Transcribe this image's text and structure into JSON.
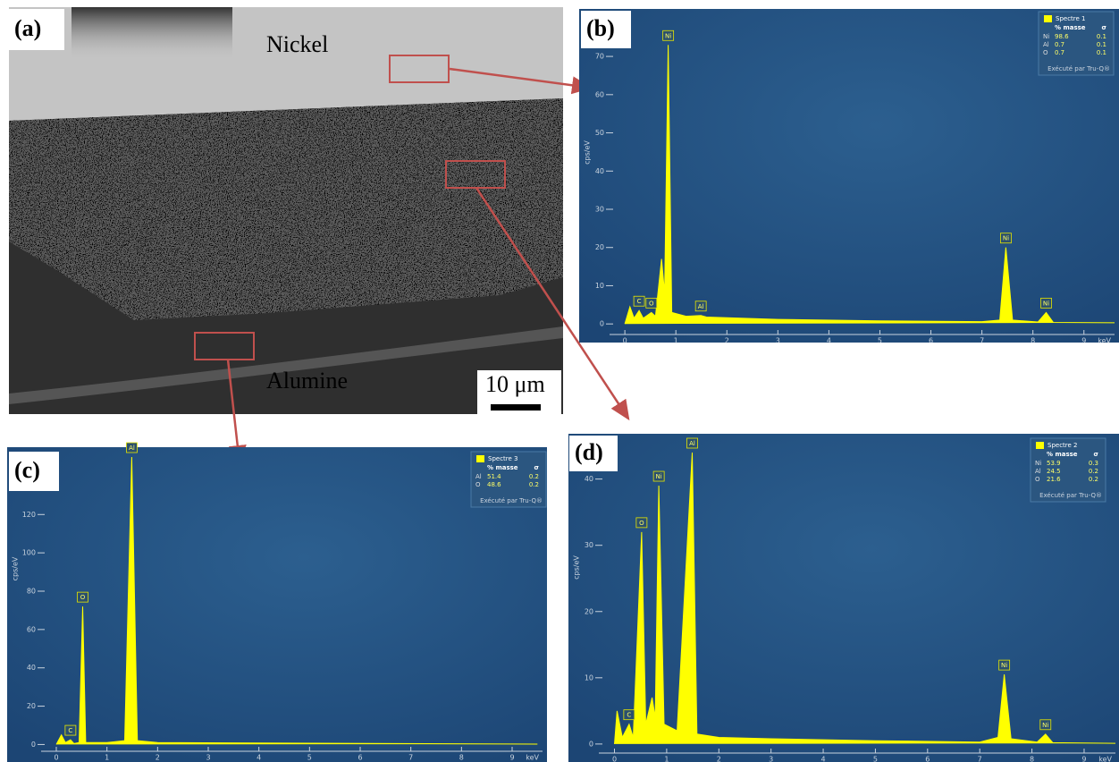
{
  "figure": {
    "panel": "(a)",
    "top_label": "Nickel",
    "bottom_label": "Alumine",
    "scale_bar": "10 μm"
  },
  "chart_data": [
    {
      "type": "line",
      "panel": "(b)",
      "ylabel": "cps/eV",
      "xlabel": "keV",
      "xlim": [
        -0.3,
        9.6
      ],
      "ylim": [
        -3,
        74
      ],
      "xticks": [
        0,
        1,
        2,
        3,
        4,
        5,
        6,
        7,
        8,
        9
      ],
      "yticks": [
        0,
        10,
        20,
        30,
        40,
        50,
        60,
        70
      ],
      "series": [
        {
          "name": "Spectre 1",
          "color": "#ffff00",
          "x": [
            0,
            0.1,
            0.18,
            0.28,
            0.36,
            0.52,
            0.6,
            0.72,
            0.78,
            0.85,
            0.92,
            1.2,
            1.49,
            1.6,
            3,
            5,
            7,
            7.35,
            7.47,
            7.6,
            8.1,
            8.26,
            8.4,
            9.6
          ],
          "y": [
            0,
            4.5,
            1.5,
            3.5,
            1.5,
            3,
            2,
            17,
            8,
            73,
            3,
            2,
            2.2,
            1.8,
            1.2,
            0.8,
            0.6,
            1,
            20,
            1,
            0.5,
            3,
            0.4,
            0.3
          ]
        }
      ],
      "annotations": [
        {
          "text": "C",
          "x": 0.28,
          "y": 3.5
        },
        {
          "text": "O",
          "x": 0.52,
          "y": 3
        },
        {
          "text": "Ni",
          "x": 0.85,
          "y": 73
        },
        {
          "text": "Al",
          "x": 1.49,
          "y": 2.2
        },
        {
          "text": "Ni",
          "x": 7.47,
          "y": 20
        },
        {
          "text": "Ni",
          "x": 8.26,
          "y": 3
        }
      ],
      "legend": {
        "columns": [
          "% masse",
          "σ"
        ],
        "rows": [
          [
            "Ni",
            98.6,
            0.1
          ],
          [
            "Al",
            0.7,
            0.1
          ],
          [
            "O",
            0.7,
            0.1
          ]
        ],
        "note": "Exécuté par Tru-Q®"
      }
    },
    {
      "type": "line",
      "panel": "(c)",
      "ylabel": "cps/eV",
      "xlabel": "keV",
      "xlim": [
        -0.3,
        9.6
      ],
      "ylim": [
        -4,
        150
      ],
      "xticks": [
        0,
        1,
        2,
        3,
        4,
        5,
        6,
        7,
        8,
        9
      ],
      "yticks": [
        0,
        20,
        40,
        60,
        80,
        100,
        120
      ],
      "series": [
        {
          "name": "Spectre 3",
          "color": "#ffff00",
          "x": [
            0,
            0.1,
            0.18,
            0.28,
            0.35,
            0.45,
            0.52,
            0.58,
            1,
            1.35,
            1.49,
            1.6,
            2,
            9.5
          ],
          "y": [
            0,
            5,
            1,
            2.5,
            0.5,
            1,
            72,
            1,
            1,
            2,
            150,
            2,
            1,
            0.2
          ]
        }
      ],
      "annotations": [
        {
          "text": "C",
          "x": 0.28,
          "y": 2.5
        },
        {
          "text": "O",
          "x": 0.52,
          "y": 72
        },
        {
          "text": "Al",
          "x": 1.49,
          "y": 150
        }
      ],
      "legend": {
        "columns": [
          "% masse",
          "σ"
        ],
        "rows": [
          [
            "Al",
            51.4,
            0.2
          ],
          [
            "O",
            48.6,
            0.2
          ]
        ],
        "note": "Exécuté par Tru-Q®"
      }
    },
    {
      "type": "line",
      "panel": "(d)",
      "ylabel": "cps/eV",
      "xlabel": "keV",
      "xlim": [
        -0.3,
        9.6
      ],
      "ylim": [
        -1.5,
        44
      ],
      "xticks": [
        0,
        1,
        2,
        3,
        4,
        5,
        6,
        7,
        8,
        9
      ],
      "yticks": [
        0,
        10,
        20,
        30,
        40
      ],
      "series": [
        {
          "name": "Spectre 2",
          "color": "#ffff00",
          "x": [
            0,
            0.05,
            0.15,
            0.28,
            0.36,
            0.52,
            0.6,
            0.72,
            0.78,
            0.85,
            0.95,
            1.2,
            1.49,
            1.58,
            2,
            3,
            5,
            7,
            7.35,
            7.47,
            7.6,
            8.1,
            8.26,
            8.4,
            9.6
          ],
          "y": [
            0,
            5,
            1,
            3,
            1,
            32,
            3,
            7,
            4,
            39,
            3,
            2,
            44,
            1.5,
            1,
            0.8,
            0.5,
            0.3,
            1,
            10.5,
            0.8,
            0.3,
            1.5,
            0.2,
            0.1
          ]
        }
      ],
      "annotations": [
        {
          "text": "C",
          "x": 0.28,
          "y": 3
        },
        {
          "text": "O",
          "x": 0.52,
          "y": 32
        },
        {
          "text": "Ni",
          "x": 0.85,
          "y": 39
        },
        {
          "text": "Al",
          "x": 1.49,
          "y": 44
        },
        {
          "text": "Ni",
          "x": 7.47,
          "y": 10.5
        },
        {
          "text": "Ni",
          "x": 8.26,
          "y": 1.5
        }
      ],
      "legend": {
        "columns": [
          "% masse",
          "σ"
        ],
        "rows": [
          [
            "Ni",
            53.9,
            0.3
          ],
          [
            "Al",
            24.5,
            0.2
          ],
          [
            "O",
            21.6,
            0.2
          ]
        ],
        "note": "Exécuté par Tru-Q®"
      }
    }
  ]
}
